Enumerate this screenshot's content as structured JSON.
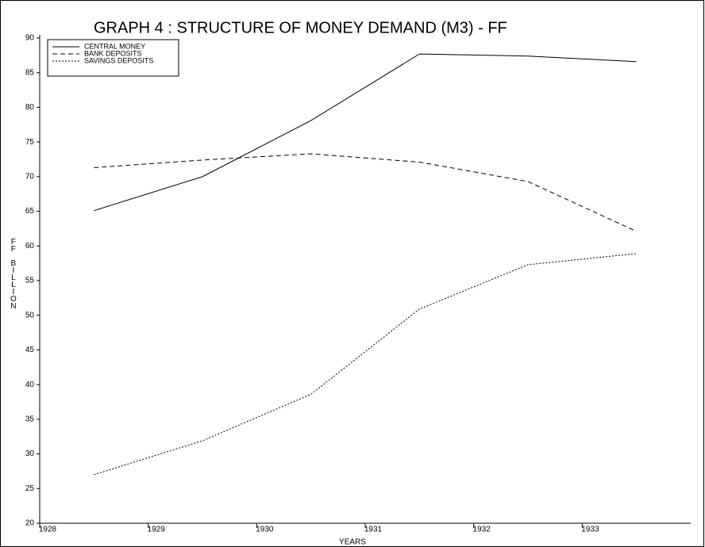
{
  "chart_data": {
    "type": "line",
    "title": "GRAPH 4 : STRUCTURE OF MONEY DEMAND (M3) - FF",
    "xlabel": "YEARS",
    "ylabel": "FF BILLION",
    "x": [
      1928.5,
      1929.5,
      1930.5,
      1931.5,
      1932.5,
      1933.5
    ],
    "series": [
      {
        "name": "CENTRAL MONEY",
        "color": "#000000",
        "dash": "none",
        "values": [
          65.1,
          70.0,
          78.1,
          87.7,
          87.4,
          86.6
        ]
      },
      {
        "name": "BANK DEPOSITS",
        "color": "#000000",
        "dash": "6,4",
        "values": [
          71.3,
          72.4,
          73.3,
          72.1,
          69.3,
          62.1
        ]
      },
      {
        "name": "SAVINGS DEPOSITS",
        "color": "#000000",
        "dash": "2,2",
        "values": [
          27.0,
          31.9,
          38.6,
          50.9,
          57.3,
          58.9
        ]
      }
    ],
    "xlim": [
      1928,
      1934
    ],
    "xticks": [
      1928,
      1929,
      1930,
      1931,
      1932,
      1933
    ],
    "ylim": [
      20,
      90
    ],
    "yticks": [
      20,
      25,
      30,
      35,
      40,
      45,
      50,
      55,
      60,
      65,
      70,
      75,
      80,
      85,
      90
    ],
    "legend": "upper left"
  }
}
